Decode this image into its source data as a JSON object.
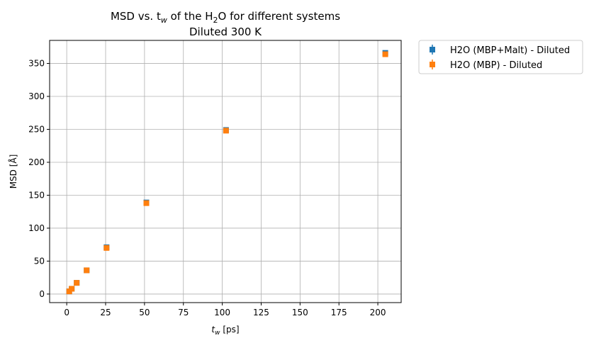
{
  "chart_data": {
    "type": "scatter",
    "title_line1": "MSD vs. t",
    "title_sub": "w",
    "title_mid": " of the H",
    "title_sub2": "2",
    "title_end": "O for different systems",
    "title_line2": "Diluted 300 K",
    "xlabel_main": "t",
    "xlabel_sub": "w",
    "xlabel_unit": " [ps]",
    "ylabel": "MSD [Å]",
    "xlim": [
      -11,
      215
    ],
    "ylim": [
      -13,
      385
    ],
    "x_ticks": [
      0,
      25,
      50,
      75,
      100,
      125,
      150,
      175,
      200
    ],
    "y_ticks": [
      0,
      50,
      100,
      150,
      200,
      250,
      300,
      350
    ],
    "grid": true,
    "legend_position": "outside-top-right",
    "series": [
      {
        "name": "H2O (MBP+Malt) - Diluted",
        "color": "#1f77b4",
        "marker": "square",
        "x": [
          1.6,
          3.2,
          6.4,
          12.8,
          25.6,
          51.2,
          102.4,
          204.8
        ],
        "y": [
          4,
          8,
          17,
          36,
          71,
          139,
          249,
          366
        ],
        "yerr": [
          0.5,
          0.5,
          0.8,
          1,
          1.5,
          2,
          2,
          3
        ]
      },
      {
        "name": "H2O (MBP) - Diluted",
        "color": "#ff7f0e",
        "marker": "square",
        "x": [
          1.6,
          3.2,
          6.4,
          12.8,
          25.6,
          51.2,
          102.4,
          204.8
        ],
        "y": [
          4,
          8,
          17,
          36,
          70,
          138,
          248,
          364
        ],
        "yerr": [
          0.5,
          0.5,
          0.8,
          1,
          1.5,
          2,
          2,
          3
        ]
      }
    ]
  }
}
